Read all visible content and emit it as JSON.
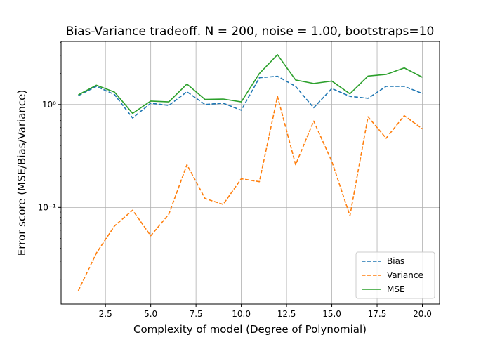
{
  "chart_data": {
    "type": "line",
    "title": "Bias-Variance tradeoff. N = 200, noise = 1.00, bootstraps=10",
    "xlabel": "Complexity of model (Degree of Polynomial)",
    "ylabel": "Error score (MSE/Bias/Variance)",
    "xlim": [
      0.05,
      20.95
    ],
    "ylim": [
      0.0115,
      4.1
    ],
    "yscale": "log",
    "grid": true,
    "legend_position": "lower-right",
    "x_ticks": [
      2.5,
      5.0,
      7.5,
      10.0,
      12.5,
      15.0,
      17.5,
      20.0
    ],
    "x_tick_labels": [
      "2.5",
      "5.0",
      "7.5",
      "10.0",
      "12.5",
      "15.0",
      "17.5",
      "20.0"
    ],
    "y_ticks": [
      0.1,
      1
    ],
    "y_tick_labels": [
      "10⁻¹",
      "10⁰"
    ],
    "x": [
      1,
      2,
      3,
      4,
      5,
      6,
      7,
      8,
      9,
      10,
      11,
      12,
      13,
      14,
      15,
      16,
      17,
      18,
      19,
      20
    ],
    "series": [
      {
        "name": "Bias",
        "color": "#1f77b4",
        "dash": "dashed",
        "values": [
          1.22,
          1.5,
          1.25,
          0.74,
          1.03,
          0.98,
          1.33,
          1.0,
          1.03,
          0.88,
          1.82,
          1.88,
          1.5,
          0.93,
          1.43,
          1.2,
          1.15,
          1.5,
          1.5,
          1.28
        ]
      },
      {
        "name": "Variance",
        "color": "#ff7f0e",
        "dash": "dashed",
        "values": [
          0.0155,
          0.036,
          0.066,
          0.094,
          0.053,
          0.086,
          0.26,
          0.122,
          0.107,
          0.19,
          0.178,
          1.2,
          0.26,
          0.69,
          0.28,
          0.083,
          0.76,
          0.47,
          0.78,
          0.58
        ]
      },
      {
        "name": "MSE",
        "color": "#2ca02c",
        "dash": "solid",
        "values": [
          1.24,
          1.54,
          1.32,
          0.82,
          1.08,
          1.06,
          1.58,
          1.12,
          1.13,
          1.06,
          2.0,
          3.05,
          1.73,
          1.6,
          1.69,
          1.27,
          1.89,
          1.96,
          2.27,
          1.84
        ]
      }
    ]
  }
}
